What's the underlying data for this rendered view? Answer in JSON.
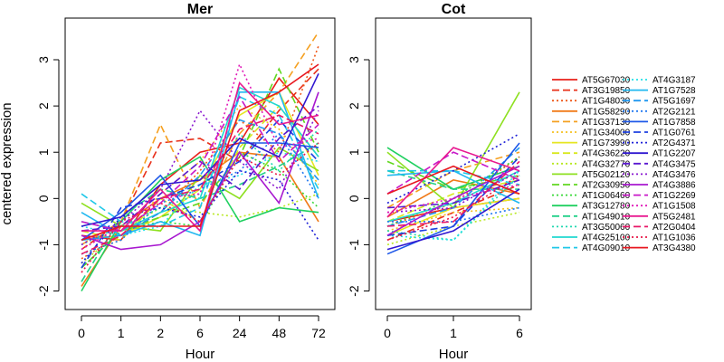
{
  "chart_data": {
    "type": "line",
    "ylabel": "centered expression",
    "ylim": [
      -2.4,
      3.9
    ],
    "yticks": [
      -2,
      -1,
      0,
      1,
      2,
      3
    ],
    "grid": false,
    "legend_placement": "right",
    "panels": [
      {
        "title": "Mer",
        "xlabel": "Hour",
        "categories": [
          "0",
          "1",
          "2",
          "6",
          "24",
          "48",
          "72"
        ]
      },
      {
        "title": "Cot",
        "xlabel": "Hour",
        "categories": [
          "0",
          "1",
          "6"
        ]
      }
    ],
    "series": [
      {
        "name": "AT5G67030",
        "color": "#e8201a",
        "dash": "solid",
        "mer": [
          -0.8,
          -0.9,
          0.3,
          1.0,
          1.2,
          2.6,
          1.6
        ],
        "cot": [
          -0.5,
          -0.2,
          0.0
        ]
      },
      {
        "name": "AT3G19850",
        "color": "#e8301a",
        "dash": "dashed",
        "mer": [
          -1.1,
          -0.5,
          1.2,
          1.3,
          0.8,
          1.9,
          2.8
        ],
        "cot": [
          -0.9,
          -0.3,
          0.3
        ]
      },
      {
        "name": "AT1G48030",
        "color": "#ef5a1a",
        "dash": "dotted",
        "mer": [
          -1.3,
          -0.8,
          -0.3,
          0.6,
          1.7,
          1.0,
          3.3
        ],
        "cot": [
          -0.6,
          -0.1,
          0.9
        ]
      },
      {
        "name": "AT1G58290",
        "color": "#f07a18",
        "dash": "solid",
        "mer": [
          -1.9,
          -0.6,
          0.0,
          0.4,
          1.0,
          0.9,
          -0.5
        ],
        "cot": [
          -0.4,
          0.4,
          0.1
        ]
      },
      {
        "name": "AT1G37130",
        "color": "#f5a020",
        "dash": "dashed",
        "mer": [
          -1.0,
          -0.5,
          1.6,
          -0.2,
          1.4,
          2.3,
          3.6
        ],
        "cot": [
          -0.2,
          0.6,
          1.0
        ]
      },
      {
        "name": "AT1G34000",
        "color": "#f5c020",
        "dash": "dotted",
        "mer": [
          -1.2,
          -0.9,
          0.1,
          0.8,
          2.0,
          1.5,
          0.3
        ],
        "cot": [
          -0.7,
          -0.3,
          -0.2
        ]
      },
      {
        "name": "AT1G73990",
        "color": "#e6e620",
        "dash": "solid",
        "mer": [
          -0.9,
          -0.8,
          -0.4,
          0.2,
          1.8,
          2.3,
          0.5
        ],
        "cot": [
          -0.8,
          -0.2,
          0.0
        ]
      },
      {
        "name": "AT4G36220",
        "color": "#d8e81e",
        "dash": "dashed",
        "mer": [
          -0.7,
          -0.9,
          0.0,
          -0.5,
          1.1,
          2.0,
          0.9
        ],
        "cot": [
          -0.5,
          0.1,
          0.4
        ]
      },
      {
        "name": "AT4G32770",
        "color": "#b8e820",
        "dash": "dotted",
        "mer": [
          -1.4,
          -0.7,
          -0.2,
          -0.3,
          -0.4,
          -0.2,
          0.1
        ],
        "cot": [
          -1.0,
          -0.6,
          -0.3
        ]
      },
      {
        "name": "AT5G02120",
        "color": "#8ee020",
        "dash": "solid",
        "mer": [
          -0.1,
          -0.6,
          -0.7,
          0.5,
          0.0,
          1.1,
          0.6
        ],
        "cot": [
          1.0,
          -0.2,
          2.3
        ]
      },
      {
        "name": "AT2G30950",
        "color": "#60d820",
        "dash": "dashed",
        "mer": [
          -1.5,
          -0.7,
          -0.4,
          -0.1,
          0.9,
          2.8,
          1.0
        ],
        "cot": [
          0.8,
          0.2,
          0.5
        ]
      },
      {
        "name": "AT1G06460",
        "color": "#38d838",
        "dash": "dotted",
        "mer": [
          -1.5,
          -0.7,
          -0.5,
          -0.6,
          1.0,
          0.6,
          -0.2
        ],
        "cot": [
          -0.6,
          0.0,
          0.9
        ]
      },
      {
        "name": "AT3G12780",
        "color": "#20d060",
        "dash": "solid",
        "mer": [
          -2.0,
          -0.5,
          0.4,
          0.9,
          -0.5,
          -0.2,
          -0.3
        ],
        "cot": [
          1.1,
          0.2,
          0.7
        ]
      },
      {
        "name": "AT1G49010",
        "color": "#20d088",
        "dash": "dashed",
        "mer": [
          -1.8,
          -0.4,
          0.2,
          0.0,
          0.3,
          0.7,
          1.2
        ],
        "cot": [
          0.6,
          0.2,
          0.2
        ]
      },
      {
        "name": "AT3G50060",
        "color": "#20d8b0",
        "dash": "dotted",
        "mer": [
          -1.0,
          -0.6,
          -0.2,
          0.1,
          1.4,
          0.6,
          1.5
        ],
        "cot": [
          -0.7,
          -0.9,
          0.5
        ]
      },
      {
        "name": "AT4G25100",
        "color": "#20d8d0",
        "dash": "solid",
        "mer": [
          -0.5,
          -0.7,
          -0.3,
          0.0,
          2.4,
          2.0,
          0.9
        ],
        "cot": [
          -0.5,
          -0.1,
          0.6
        ]
      },
      {
        "name": "AT4G09010",
        "color": "#20c8e8",
        "dash": "dashed",
        "mer": [
          0.1,
          -0.5,
          -0.6,
          -0.2,
          2.2,
          1.8,
          0.2
        ],
        "cot": [
          0.6,
          0.6,
          0.3
        ]
      },
      {
        "name": "AT4G3187",
        "color": "#20e0e8",
        "dash": "dotted",
        "mer": [
          -0.6,
          -0.8,
          -0.6,
          0.3,
          0.5,
          1.0,
          0.8
        ],
        "cot": [
          -0.8,
          -0.9,
          0.6
        ]
      },
      {
        "name": "AT1G7528",
        "color": "#20b8f0",
        "dash": "solid",
        "mer": [
          -0.3,
          -0.8,
          -0.5,
          -0.8,
          2.3,
          2.3,
          0.0
        ],
        "cot": [
          0.5,
          0.6,
          -0.1
        ]
      },
      {
        "name": "AT5G1697",
        "color": "#2098f0",
        "dash": "dashed",
        "mer": [
          -0.9,
          -0.8,
          -0.3,
          0.5,
          1.7,
          1.4,
          0.4
        ],
        "cot": [
          -0.6,
          -0.2,
          1.1
        ]
      },
      {
        "name": "AT2G2121",
        "color": "#2078f0",
        "dash": "dotted",
        "mer": [
          -1.2,
          -0.9,
          -0.1,
          0.2,
          0.6,
          1.4,
          0.0
        ],
        "cot": [
          -0.5,
          -0.5,
          -0.2
        ]
      },
      {
        "name": "AT1G7858",
        "color": "#1e58e8",
        "dash": "solid",
        "mer": [
          -0.9,
          -0.3,
          0.5,
          -0.6,
          1.2,
          1.2,
          1.1
        ],
        "cot": [
          -1.2,
          -0.6,
          1.2
        ]
      },
      {
        "name": "AT1G0761",
        "color": "#1e40e0",
        "dash": "dashed",
        "mer": [
          -1.5,
          -0.2,
          0.0,
          0.3,
          0.8,
          1.7,
          0.8
        ],
        "cot": [
          -0.8,
          -0.6,
          0.9
        ]
      },
      {
        "name": "AT2G4371",
        "color": "#1e20d8",
        "dash": "dotted",
        "mer": [
          -1.4,
          -0.4,
          -0.2,
          -0.4,
          0.6,
          0.4,
          -0.9
        ],
        "cot": [
          -0.1,
          0.6,
          1.4
        ]
      },
      {
        "name": "AT1G2207",
        "color": "#3018d0",
        "dash": "solid",
        "mer": [
          -0.6,
          -0.4,
          0.3,
          0.4,
          1.3,
          0.9,
          2.7
        ],
        "cot": [
          -1.1,
          -0.7,
          0.2
        ]
      },
      {
        "name": "AT4G3475",
        "color": "#5a18d0",
        "dash": "dashed",
        "mer": [
          -0.7,
          -0.6,
          0.1,
          0.8,
          0.2,
          1.3,
          2.0
        ],
        "cot": [
          -0.2,
          -0.1,
          0.4
        ]
      },
      {
        "name": "AT4G3476",
        "color": "#8a18d0",
        "dash": "dotted",
        "mer": [
          -1.0,
          -0.5,
          0.2,
          1.9,
          0.8,
          0.2,
          1.9
        ],
        "cot": [
          -0.3,
          -0.2,
          0.6
        ]
      },
      {
        "name": "AT4G3886",
        "color": "#a818d0",
        "dash": "solid",
        "mer": [
          -0.8,
          -1.1,
          -1.0,
          -0.5,
          1.0,
          -0.1,
          2.3
        ],
        "cot": [
          -0.8,
          0.0,
          0.7
        ]
      },
      {
        "name": "AT1G2269",
        "color": "#c818c8",
        "dash": "dashed",
        "mer": [
          -0.5,
          -0.7,
          -0.1,
          0.7,
          2.2,
          0.8,
          1.6
        ],
        "cot": [
          0.1,
          1.0,
          0.4
        ]
      },
      {
        "name": "AT1G1508",
        "color": "#e018b8",
        "dash": "dotted",
        "mer": [
          -1.1,
          -0.6,
          0.0,
          0.1,
          2.9,
          1.1,
          1.3
        ],
        "cot": [
          -0.3,
          0.0,
          0.3
        ]
      },
      {
        "name": "AT5G2481",
        "color": "#e81890",
        "dash": "solid",
        "mer": [
          -0.7,
          -0.7,
          0.2,
          -0.7,
          2.5,
          1.6,
          1.8
        ],
        "cot": [
          -0.4,
          1.1,
          0.6
        ]
      },
      {
        "name": "AT2G0404",
        "color": "#e81868",
        "dash": "dashed",
        "mer": [
          -1.2,
          -0.8,
          0.0,
          0.2,
          1.5,
          1.8,
          1.4
        ],
        "cot": [
          -0.6,
          -0.5,
          0.8
        ]
      },
      {
        "name": "AT1G1036",
        "color": "#e81848",
        "dash": "dotted",
        "mer": [
          -1.6,
          -0.5,
          -0.1,
          -0.5,
          0.9,
          0.5,
          1.2
        ],
        "cot": [
          -0.9,
          -0.4,
          0.5
        ]
      },
      {
        "name": "AT3G4380",
        "color": "#e81820",
        "dash": "solid",
        "mer": [
          -0.9,
          -0.6,
          -0.6,
          -0.6,
          1.9,
          2.3,
          2.9
        ],
        "cot": [
          0.1,
          0.7,
          0.1
        ]
      }
    ]
  }
}
